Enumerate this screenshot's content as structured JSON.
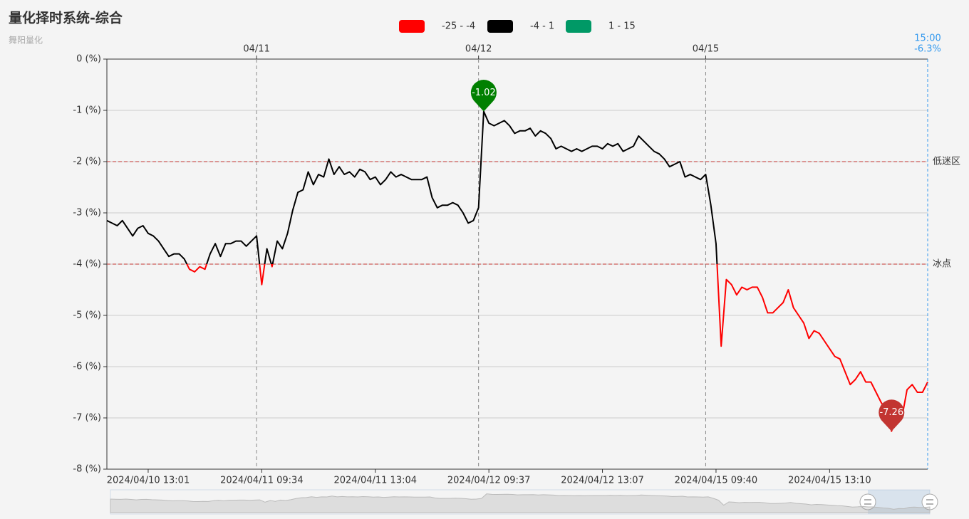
{
  "chart_data": {
    "type": "line",
    "title": "量化择时系统-综合",
    "subtitle": "舞阳量化",
    "ylim": [
      -8,
      0
    ],
    "yticks": [
      {
        "value": 0,
        "label": "0 (%)"
      },
      {
        "value": -1,
        "label": "-1 (%)"
      },
      {
        "value": -2,
        "label": "-2 (%)"
      },
      {
        "value": -3,
        "label": "-3 (%)"
      },
      {
        "value": -4,
        "label": "-4 (%)"
      },
      {
        "value": -5,
        "label": "-5 (%)"
      },
      {
        "value": -6,
        "label": "-6 (%)"
      },
      {
        "value": -7,
        "label": "-7 (%)"
      },
      {
        "value": -8,
        "label": "-8 (%)"
      }
    ],
    "grid": true,
    "pieces": [
      {
        "label": "-25 - -4",
        "min": -25,
        "max": -4,
        "color": "#ff0000"
      },
      {
        "label": "-4 - 1",
        "min": -4,
        "max": 1,
        "color": "#000000"
      },
      {
        "label": "1 - 15",
        "min": 1,
        "max": 15,
        "color": "#009966"
      }
    ],
    "categories": [
      null,
      null,
      null,
      null,
      null,
      null,
      null,
      null,
      "2024/04/10 13:01",
      null,
      null,
      null,
      null,
      null,
      null,
      null,
      null,
      null,
      null,
      null,
      null,
      null,
      null,
      null,
      null,
      null,
      null,
      null,
      null,
      null,
      "2024/04/11 09:34",
      null,
      null,
      null,
      null,
      null,
      null,
      null,
      null,
      null,
      null,
      null,
      null,
      null,
      null,
      null,
      null,
      null,
      null,
      null,
      null,
      null,
      "2024/04/11 13:04",
      null,
      null,
      null,
      null,
      null,
      null,
      null,
      null,
      null,
      null,
      null,
      null,
      null,
      null,
      null,
      null,
      null,
      null,
      null,
      null,
      null,
      "2024/04/12 09:37",
      null,
      null,
      null,
      null,
      null,
      null,
      null,
      null,
      null,
      null,
      null,
      null,
      null,
      null,
      null,
      null,
      null,
      null,
      null,
      null,
      null,
      "2024/04/12 13:07",
      null,
      null,
      null,
      null,
      null,
      null,
      null,
      null,
      null,
      null,
      null,
      null,
      null,
      null,
      null,
      null,
      null,
      null,
      null,
      null,
      null,
      "2024/04/15 09:40",
      null,
      null,
      null,
      null,
      null,
      null,
      null,
      null,
      null,
      null,
      null,
      null,
      null,
      null,
      null,
      null,
      null,
      null,
      null,
      null,
      null,
      "2024/04/15 13:10",
      null,
      null,
      null,
      null,
      null,
      null,
      null,
      null,
      null,
      null,
      null,
      null,
      null,
      null,
      null,
      null,
      null,
      null,
      null
    ],
    "series": [
      {
        "name": "综合",
        "values": [
          -3.15,
          -3.2,
          -3.25,
          -3.15,
          -3.3,
          -3.45,
          -3.3,
          -3.25,
          -3.4,
          -3.45,
          -3.55,
          -3.7,
          -3.85,
          -3.8,
          -3.8,
          -3.9,
          -4.1,
          -4.15,
          -4.05,
          -4.1,
          -3.8,
          -3.6,
          -3.85,
          -3.6,
          -3.6,
          -3.55,
          -3.55,
          -3.65,
          -3.55,
          -3.45,
          -4.4,
          -3.7,
          -4.05,
          -3.55,
          -3.7,
          -3.4,
          -2.95,
          -2.6,
          -2.55,
          -2.2,
          -2.45,
          -2.25,
          -2.3,
          -1.95,
          -2.25,
          -2.1,
          -2.25,
          -2.2,
          -2.3,
          -2.15,
          -2.2,
          -2.35,
          -2.3,
          -2.45,
          -2.35,
          -2.2,
          -2.3,
          -2.25,
          -2.3,
          -2.35,
          -2.35,
          -2.35,
          -2.3,
          -2.7,
          -2.9,
          -2.85,
          -2.85,
          -2.8,
          -2.85,
          -3.0,
          -3.2,
          -3.15,
          -2.9,
          -1.02,
          -1.25,
          -1.3,
          -1.25,
          -1.2,
          -1.3,
          -1.45,
          -1.4,
          -1.4,
          -1.35,
          -1.5,
          -1.4,
          -1.45,
          -1.55,
          -1.75,
          -1.7,
          -1.75,
          -1.8,
          -1.75,
          -1.8,
          -1.75,
          -1.7,
          -1.7,
          -1.75,
          -1.65,
          -1.7,
          -1.65,
          -1.8,
          -1.75,
          -1.7,
          -1.5,
          -1.6,
          -1.7,
          -1.8,
          -1.85,
          -1.95,
          -2.1,
          -2.05,
          -2.0,
          -2.3,
          -2.25,
          -2.3,
          -2.35,
          -2.25,
          -2.85,
          -3.6,
          -5.6,
          -4.3,
          -4.4,
          -4.6,
          -4.45,
          -4.5,
          -4.45,
          -4.45,
          -4.65,
          -4.95,
          -4.95,
          -4.85,
          -4.75,
          -4.5,
          -4.85,
          -5.0,
          -5.15,
          -5.45,
          -5.3,
          -5.35,
          -5.5,
          -5.65,
          -5.8,
          -5.85,
          -6.1,
          -6.35,
          -6.25,
          -6.1,
          -6.3,
          -6.3,
          -6.5,
          -6.7,
          -6.85,
          -7.26,
          -6.95,
          -7.0,
          -6.45,
          -6.35,
          -6.5,
          -6.5,
          -6.3
        ]
      }
    ],
    "mark_lines": [
      {
        "value": -2,
        "label": "低迷区"
      },
      {
        "value": -4,
        "label": "冰点"
      }
    ],
    "mark_points": [
      {
        "index": 73,
        "value": -1.02,
        "color": "#008000"
      },
      {
        "index": 152,
        "value": -7.26,
        "color": "#c23531"
      }
    ],
    "day_marks": [
      {
        "index": 29,
        "label": "04/11"
      },
      {
        "index": 72,
        "label": "04/12"
      },
      {
        "index": 116,
        "label": "04/15"
      }
    ],
    "latest": {
      "time": "15:00",
      "value": -6.3,
      "value_label": "-6.3%"
    }
  }
}
